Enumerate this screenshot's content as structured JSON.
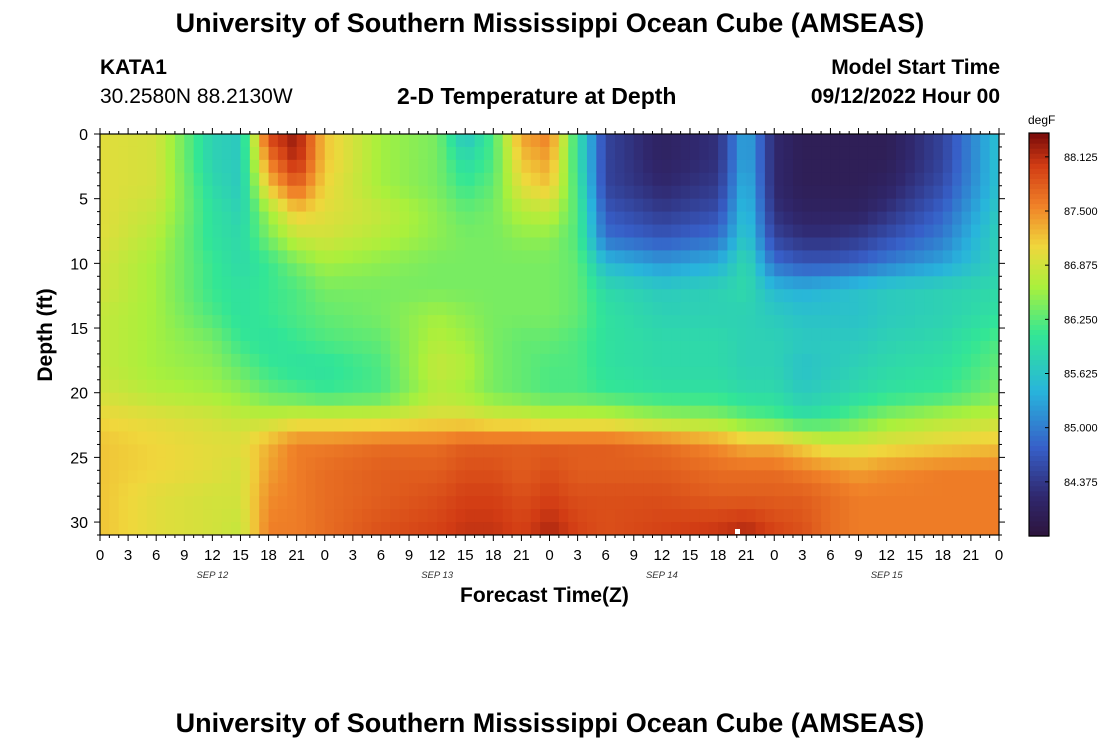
{
  "page": {
    "title": "University of Southern Mississippi Ocean Cube (AMSEAS)",
    "title_repeat": "University of Southern Mississippi Ocean Cube (AMSEAS)",
    "station_id": "KATA1",
    "coordinates": "30.2580N  88.2130W",
    "model_start_label": "Model Start Time",
    "model_start_value": "09/12/2022 Hour 00"
  },
  "chart_data": {
    "type": "heatmap",
    "title": "2-D Temperature at Depth",
    "xlabel": "Forecast Time(Z)",
    "ylabel": "Depth (ft)",
    "colorbar_unit": "degF",
    "x_ticks": [
      "0",
      "3",
      "6",
      "9",
      "12",
      "15",
      "18",
      "21",
      "0",
      "3",
      "6",
      "9",
      "12",
      "15",
      "18",
      "21",
      "0",
      "3",
      "6",
      "9",
      "12",
      "15",
      "18",
      "21",
      "0",
      "3",
      "6",
      "9",
      "12",
      "15",
      "18",
      "21",
      "0"
    ],
    "x_hours": [
      0,
      3,
      6,
      9,
      12,
      15,
      18,
      21,
      24,
      27,
      30,
      33,
      36,
      39,
      42,
      45,
      48,
      51,
      54,
      57,
      60,
      63,
      66,
      69,
      72,
      75,
      78,
      81,
      84,
      87,
      90,
      93,
      96
    ],
    "date_labels": [
      {
        "label": "SEP 12",
        "hour": 12
      },
      {
        "label": "SEP 13",
        "hour": 36
      },
      {
        "label": "SEP 14",
        "hour": 60
      },
      {
        "label": "SEP 15",
        "hour": 84
      }
    ],
    "y_ticks": [
      0,
      5,
      10,
      15,
      20,
      25,
      30
    ],
    "y_range": [
      0,
      31
    ],
    "x_range": [
      0,
      96
    ],
    "colorbar_ticks": [
      "88.125",
      "87.500",
      "86.875",
      "86.250",
      "85.625",
      "85.000",
      "84.375"
    ],
    "colorbar_range": [
      83.75,
      88.4
    ],
    "depths": [
      0,
      2,
      4,
      6,
      8,
      10,
      12,
      14,
      16,
      18,
      20,
      22,
      24,
      26,
      28,
      31
    ],
    "times": [
      0,
      6,
      12,
      15,
      18,
      21,
      24,
      30,
      36,
      39,
      42,
      45,
      48,
      51,
      54,
      60,
      66,
      69,
      72,
      75,
      78,
      81,
      84,
      90,
      96
    ],
    "temperature": [
      [
        87.0,
        86.9,
        85.8,
        85.7,
        88.0,
        88.3,
        87.2,
        86.6,
        86.4,
        85.6,
        86.2,
        87.4,
        87.6,
        86.0,
        84.5,
        84.1,
        84.3,
        85.4,
        84.2,
        84.0,
        84.0,
        84.0,
        84.0,
        84.5,
        85.6
      ],
      [
        87.0,
        86.9,
        85.8,
        85.7,
        87.6,
        88.2,
        87.2,
        86.6,
        86.4,
        85.9,
        86.2,
        87.2,
        87.4,
        86.0,
        84.5,
        84.1,
        84.3,
        85.4,
        84.2,
        84.0,
        84.0,
        84.0,
        84.0,
        84.5,
        85.6
      ],
      [
        87.0,
        86.9,
        85.9,
        85.7,
        87.2,
        87.8,
        87.1,
        86.6,
        86.4,
        86.1,
        86.3,
        87.0,
        87.2,
        86.1,
        84.5,
        84.2,
        84.4,
        85.5,
        84.2,
        84.0,
        84.0,
        84.0,
        84.1,
        84.6,
        85.6
      ],
      [
        87.0,
        86.8,
        86.0,
        85.8,
        86.6,
        87.2,
        87.0,
        86.8,
        86.5,
        86.3,
        86.4,
        86.7,
        86.8,
        86.2,
        84.7,
        84.4,
        84.6,
        85.6,
        84.3,
        84.1,
        84.1,
        84.1,
        84.3,
        84.8,
        85.7
      ],
      [
        87.0,
        86.7,
        86.0,
        85.9,
        86.4,
        86.8,
        86.9,
        86.7,
        86.5,
        86.4,
        86.4,
        86.5,
        86.5,
        86.2,
        84.9,
        84.7,
        84.9,
        85.7,
        84.5,
        84.3,
        84.3,
        84.4,
        84.6,
        85.0,
        85.8
      ],
      [
        86.9,
        86.6,
        86.1,
        85.9,
        86.1,
        86.4,
        86.6,
        86.5,
        86.4,
        86.4,
        86.4,
        86.4,
        86.4,
        86.3,
        85.5,
        85.2,
        85.4,
        85.9,
        84.9,
        84.7,
        84.7,
        84.8,
        85.0,
        85.3,
        85.8
      ],
      [
        86.9,
        86.6,
        86.1,
        86.0,
        86.1,
        86.2,
        86.4,
        86.4,
        86.4,
        86.4,
        86.4,
        86.4,
        86.4,
        86.3,
        85.9,
        85.7,
        85.8,
        85.9,
        85.5,
        85.4,
        85.5,
        85.6,
        85.7,
        85.8,
        85.9
      ],
      [
        86.8,
        86.6,
        86.2,
        86.0,
        86.1,
        86.2,
        86.3,
        86.4,
        86.6,
        86.5,
        86.4,
        86.4,
        86.4,
        86.3,
        86.0,
        85.8,
        85.8,
        85.8,
        85.7,
        85.6,
        85.6,
        85.6,
        85.7,
        85.8,
        86.0
      ],
      [
        86.8,
        86.6,
        86.4,
        86.1,
        86.0,
        86.1,
        86.2,
        86.3,
        86.7,
        86.6,
        86.4,
        86.3,
        86.3,
        86.2,
        86.0,
        85.9,
        85.9,
        85.8,
        85.8,
        85.7,
        85.7,
        85.7,
        85.8,
        85.9,
        86.2
      ],
      [
        86.8,
        86.6,
        86.5,
        86.3,
        86.1,
        86.0,
        86.0,
        86.2,
        86.8,
        86.7,
        86.4,
        86.3,
        86.2,
        86.2,
        86.0,
        85.9,
        85.9,
        85.8,
        85.8,
        85.6,
        85.7,
        85.8,
        85.9,
        86.0,
        86.3
      ],
      [
        86.9,
        86.7,
        86.6,
        86.5,
        86.3,
        86.2,
        86.1,
        86.2,
        86.7,
        86.6,
        86.4,
        86.3,
        86.2,
        86.2,
        86.1,
        86.0,
        86.0,
        85.9,
        85.9,
        85.7,
        85.8,
        85.9,
        86.0,
        86.1,
        86.4
      ],
      [
        87.1,
        87.0,
        86.9,
        86.8,
        86.8,
        86.9,
        86.9,
        86.9,
        87.0,
        87.0,
        86.9,
        86.9,
        86.8,
        86.8,
        86.8,
        86.6,
        86.5,
        86.3,
        86.2,
        86.0,
        86.1,
        86.3,
        86.5,
        86.7,
        86.8
      ],
      [
        87.2,
        87.1,
        87.0,
        87.0,
        87.3,
        87.6,
        87.6,
        87.7,
        87.7,
        87.8,
        87.8,
        87.8,
        87.8,
        87.8,
        87.8,
        87.7,
        87.5,
        87.3,
        87.3,
        87.1,
        86.9,
        86.9,
        87.0,
        87.1,
        87.2
      ],
      [
        87.2,
        87.1,
        87.0,
        86.9,
        87.4,
        87.6,
        87.7,
        87.8,
        87.8,
        87.9,
        87.9,
        87.8,
        87.9,
        87.8,
        87.8,
        87.8,
        87.7,
        87.7,
        87.7,
        87.6,
        87.5,
        87.4,
        87.5,
        87.6,
        87.6
      ],
      [
        87.2,
        87.0,
        86.9,
        86.9,
        87.5,
        87.6,
        87.7,
        87.8,
        87.9,
        88.0,
        88.0,
        87.9,
        88.0,
        87.9,
        87.9,
        87.9,
        87.8,
        87.8,
        87.8,
        87.8,
        87.7,
        87.6,
        87.6,
        87.6,
        87.6
      ],
      [
        87.2,
        87.0,
        86.9,
        86.8,
        87.6,
        87.6,
        87.7,
        87.9,
        88.0,
        88.1,
        88.1,
        88.0,
        88.2,
        88.0,
        87.9,
        88.0,
        88.1,
        88.2,
        88.0,
        87.9,
        87.7,
        87.6,
        87.6,
        87.6,
        87.6
      ]
    ]
  }
}
